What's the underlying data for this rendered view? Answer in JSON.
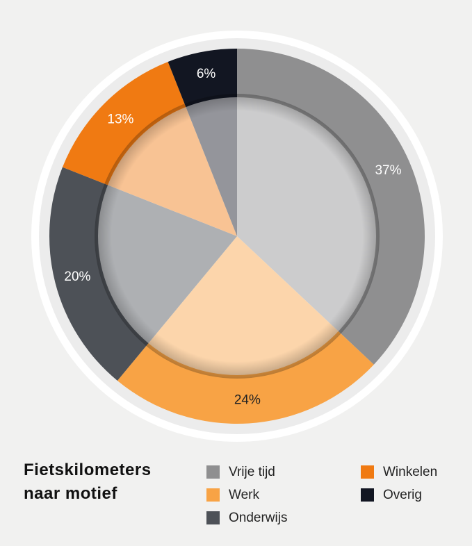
{
  "chart_data": {
    "type": "pie",
    "title": "Fietskilometers naar motief",
    "categories": [
      "Vrije tijd",
      "Werk",
      "Onderwijs",
      "Winkelen",
      "Overig"
    ],
    "values": [
      37,
      24,
      20,
      13,
      6
    ],
    "value_labels": [
      "37%",
      "24%",
      "20%",
      "13%",
      "6%"
    ],
    "colors": [
      "#8f8f90",
      "#f8a345",
      "#4d5157",
      "#f07a12",
      "#121622"
    ]
  }
}
